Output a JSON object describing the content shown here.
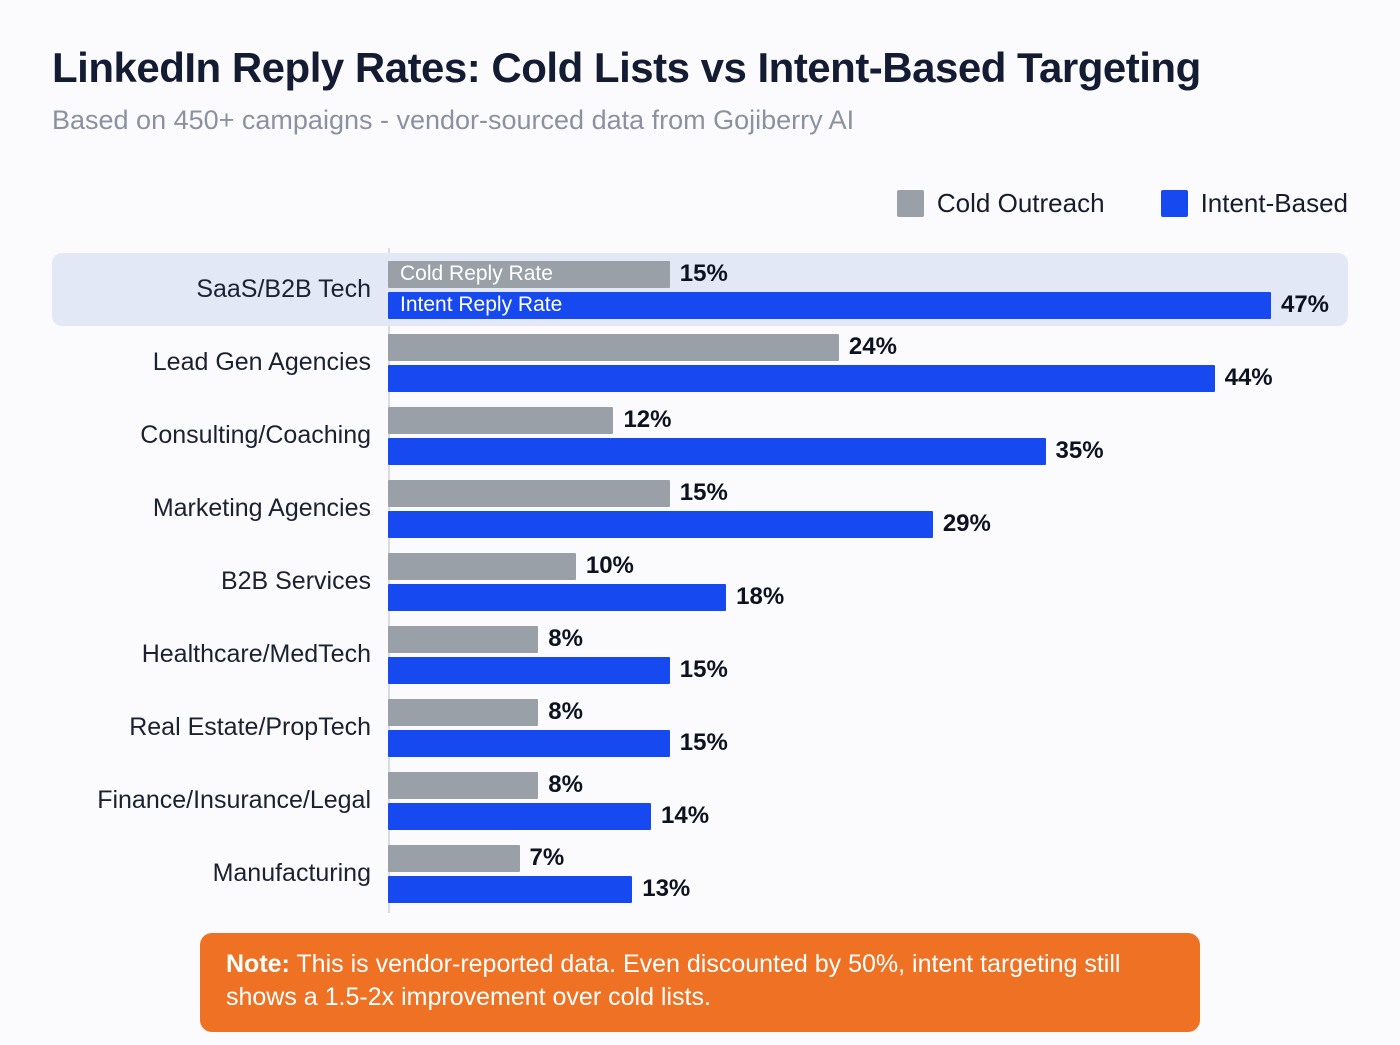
{
  "title": "LinkedIn Reply Rates: Cold Lists vs Intent-Based Targeting",
  "subtitle": "Based on 450+ campaigns - vendor-sourced data from Gojiberry AI",
  "legend": [
    {
      "label": "Cold Outreach",
      "color": "#9aa0a8"
    },
    {
      "label": "Intent-Based",
      "color": "#1649ef"
    }
  ],
  "chart_data": {
    "type": "bar",
    "orientation": "horizontal",
    "title": "LinkedIn Reply Rates: Cold Lists vs Intent-Based Targeting",
    "categories": [
      "SaaS/B2B Tech",
      "Lead Gen Agencies",
      "Consulting/Coaching",
      "Marketing Agencies",
      "B2B Services",
      "Healthcare/MedTech",
      "Real Estate/PropTech",
      "Finance/Insurance/Legal",
      "Manufacturing"
    ],
    "series": [
      {
        "name": "Cold Outreach",
        "color": "#9aa0a8",
        "values": [
          15,
          24,
          12,
          15,
          10,
          8,
          8,
          8,
          7
        ]
      },
      {
        "name": "Intent-Based",
        "color": "#1649ef",
        "values": [
          47,
          44,
          35,
          29,
          18,
          15,
          15,
          14,
          13
        ]
      }
    ],
    "value_suffix": "%",
    "xlim": [
      0,
      51.1
    ],
    "grid": false,
    "legend_position": "top-right",
    "highlighted_category": "SaaS/B2B Tech",
    "inline_bar_labels": {
      "cold": "Cold Reply Rate",
      "intent": "Intent Reply Rate"
    }
  },
  "note": {
    "prefix": "Note:",
    "text": "This is vendor-reported data. Even discounted by 50%, intent targeting still shows a 1.5-2x improvement over cold lists."
  },
  "colors": {
    "cold_bar": "#9aa0a8",
    "intent_bar": "#1649ef",
    "highlight_row_bg": "#e3e8f7",
    "note_bg": "#ee7124",
    "title_text": "#141c33",
    "subtitle_text": "#8b91a0",
    "background": "#fbfbfd"
  }
}
